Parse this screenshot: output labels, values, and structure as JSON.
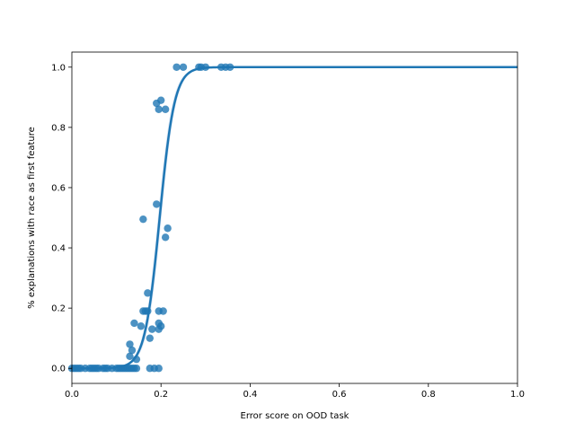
{
  "chart_data": {
    "type": "scatter",
    "xlabel": "Error score on OOD task",
    "ylabel": "% explanations with race as first feature",
    "xlim": [
      0.0,
      1.0
    ],
    "ylim": [
      -0.05,
      1.05
    ],
    "x_ticks": [
      "0.0",
      "0.2",
      "0.4",
      "0.6",
      "0.8",
      "1.0"
    ],
    "y_ticks": [
      "0.0",
      "0.2",
      "0.4",
      "0.6",
      "0.8",
      "1.0"
    ],
    "grid": false,
    "legend": "none",
    "colors": {
      "points": "#1f77b4",
      "fit_line": "#1f77b4",
      "band": "#aec7e8"
    },
    "points": [
      [
        0.0,
        0.0
      ],
      [
        0.005,
        0.0
      ],
      [
        0.01,
        0.0
      ],
      [
        0.015,
        0.0
      ],
      [
        0.02,
        0.0
      ],
      [
        0.03,
        0.0
      ],
      [
        0.04,
        0.0
      ],
      [
        0.045,
        0.0
      ],
      [
        0.05,
        0.0
      ],
      [
        0.055,
        0.0
      ],
      [
        0.06,
        0.0
      ],
      [
        0.07,
        0.0
      ],
      [
        0.075,
        0.0
      ],
      [
        0.08,
        0.0
      ],
      [
        0.09,
        0.0
      ],
      [
        0.1,
        0.0
      ],
      [
        0.105,
        0.0
      ],
      [
        0.11,
        0.0
      ],
      [
        0.115,
        0.0
      ],
      [
        0.12,
        0.0
      ],
      [
        0.125,
        0.0
      ],
      [
        0.13,
        0.0
      ],
      [
        0.135,
        0.0
      ],
      [
        0.14,
        0.0
      ],
      [
        0.145,
        0.0
      ],
      [
        0.175,
        0.0
      ],
      [
        0.185,
        0.0
      ],
      [
        0.195,
        0.0
      ],
      [
        0.13,
        0.04
      ],
      [
        0.13,
        0.08
      ],
      [
        0.135,
        0.06
      ],
      [
        0.14,
        0.15
      ],
      [
        0.145,
        0.03
      ],
      [
        0.155,
        0.14
      ],
      [
        0.16,
        0.19
      ],
      [
        0.165,
        0.19
      ],
      [
        0.17,
        0.25
      ],
      [
        0.17,
        0.19
      ],
      [
        0.175,
        0.1
      ],
      [
        0.18,
        0.13
      ],
      [
        0.195,
        0.13
      ],
      [
        0.195,
        0.15
      ],
      [
        0.195,
        0.19
      ],
      [
        0.2,
        0.14
      ],
      [
        0.205,
        0.19
      ],
      [
        0.16,
        0.495
      ],
      [
        0.19,
        0.545
      ],
      [
        0.21,
        0.435
      ],
      [
        0.215,
        0.465
      ],
      [
        0.19,
        0.88
      ],
      [
        0.195,
        0.86
      ],
      [
        0.2,
        0.89
      ],
      [
        0.21,
        0.86
      ],
      [
        0.235,
        1.0
      ],
      [
        0.25,
        1.0
      ],
      [
        0.285,
        1.0
      ],
      [
        0.29,
        1.0
      ],
      [
        0.3,
        1.0
      ],
      [
        0.335,
        1.0
      ],
      [
        0.345,
        1.0
      ],
      [
        0.355,
        1.0
      ]
    ],
    "fit": {
      "model": "logistic",
      "midpoint": 0.197,
      "steepness": 60,
      "band_halfwidth_max": 0.06
    }
  }
}
